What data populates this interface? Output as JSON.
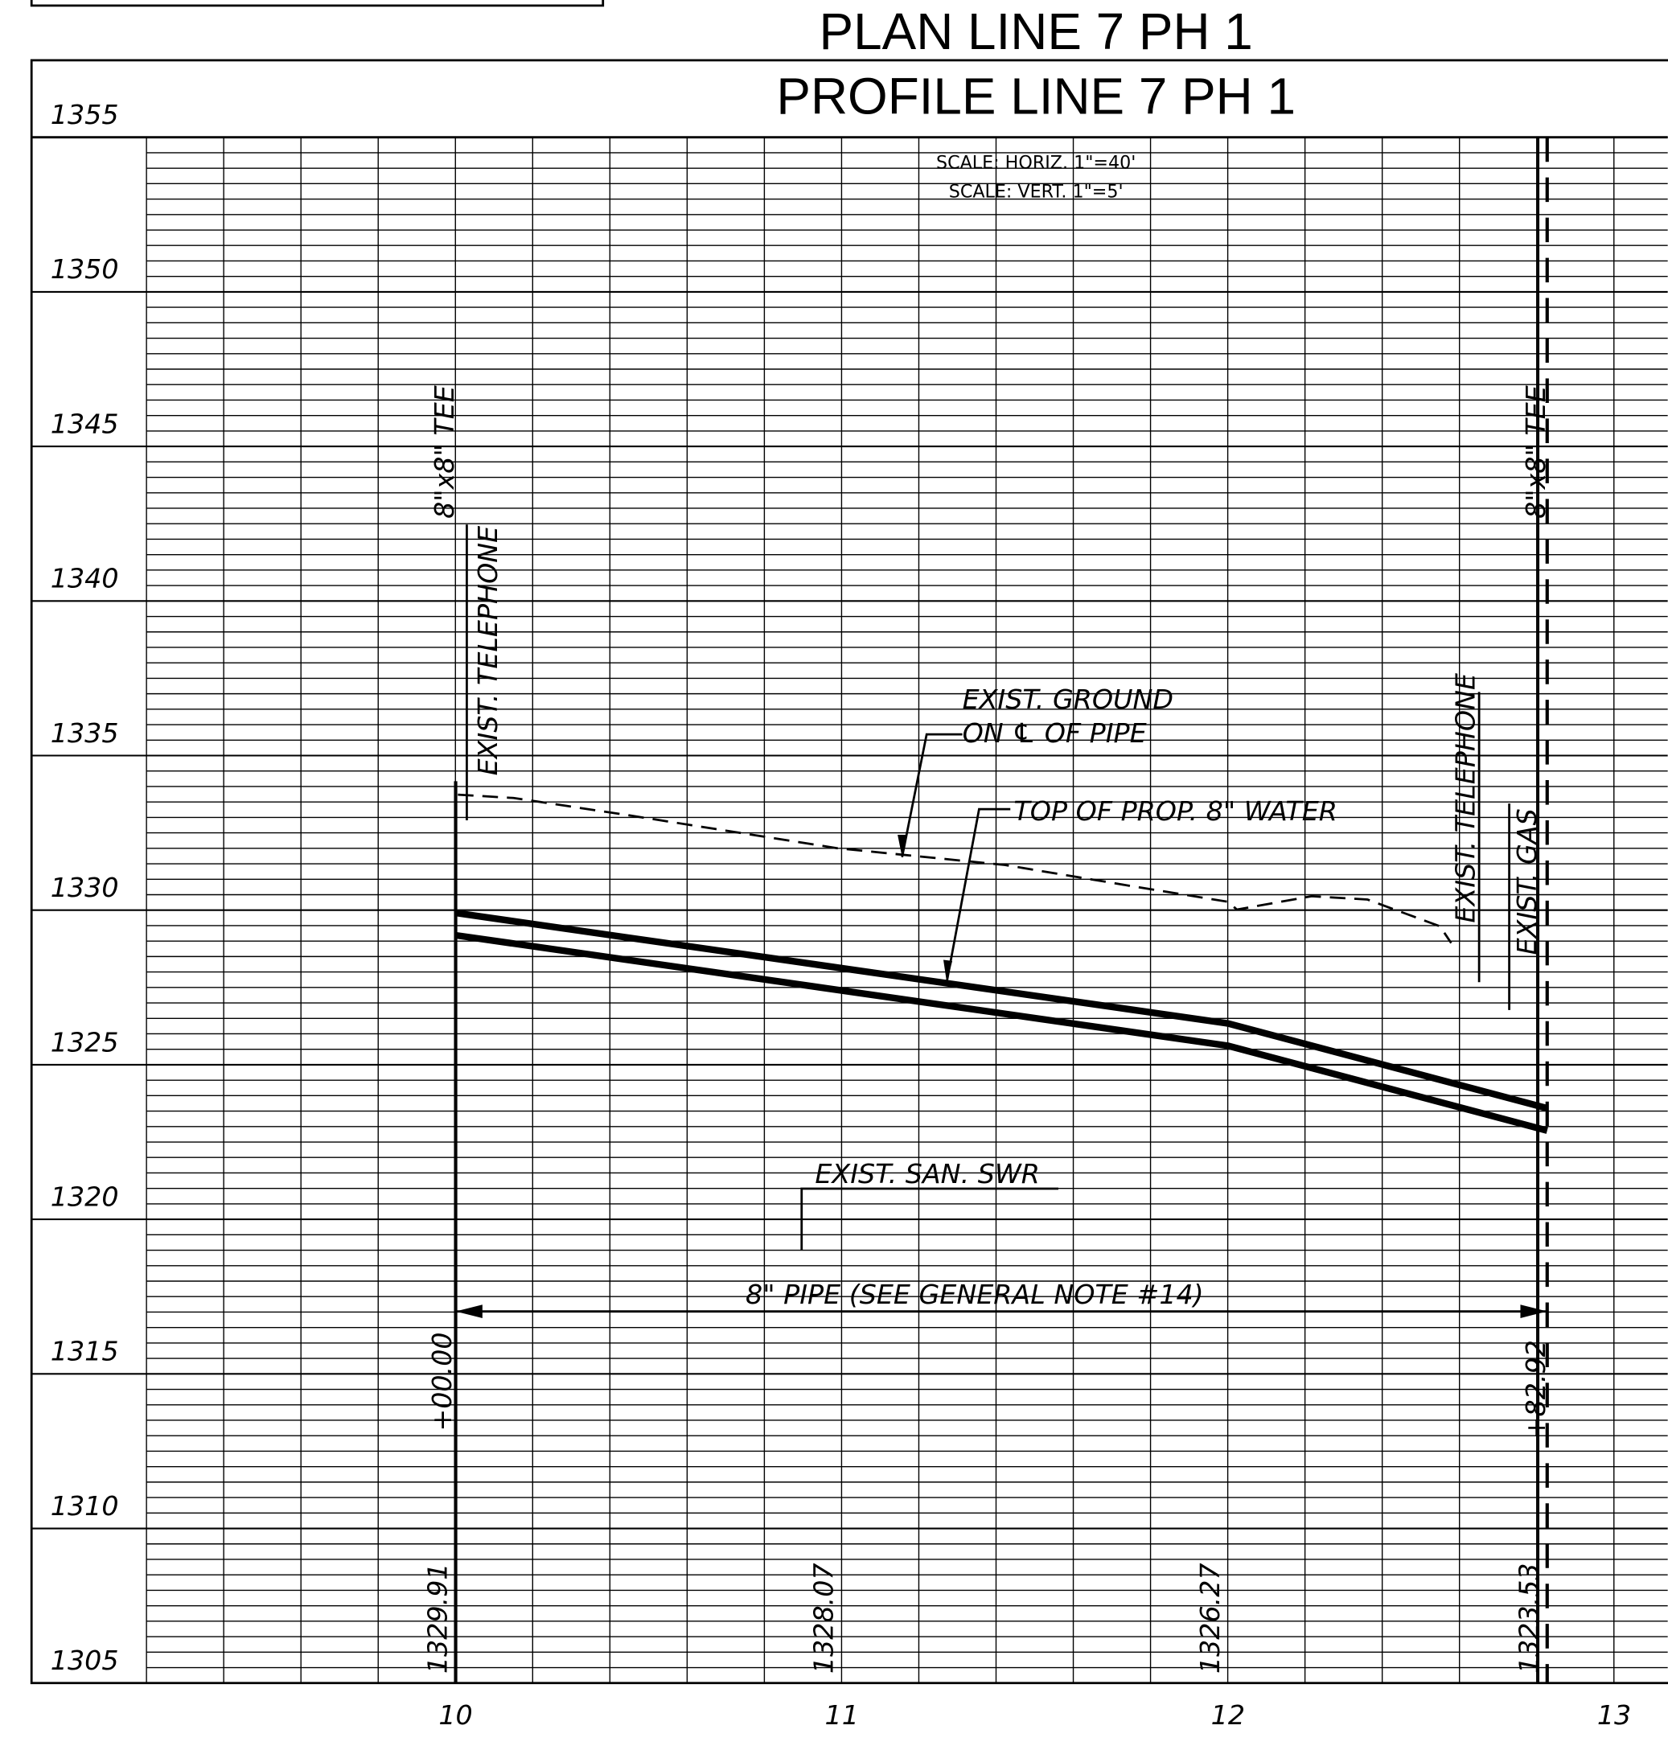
{
  "title": "PLAN LINE 7 PH 1",
  "subtitle": "PROFILE LINE 7 PH 1",
  "scale": [
    "SCALE: HORIZ. 1\"=40'",
    "SCALE: VERT. 1\"=5'"
  ],
  "elevation_labels": [
    1355,
    1350,
    1345,
    1340,
    1335,
    1330,
    1325,
    1320,
    1315,
    1310,
    1305
  ],
  "station_labels": [
    10,
    11,
    12,
    13
  ],
  "bottom_elevations": [
    "1329.91",
    "1328.07",
    "1326.27",
    "1323.53"
  ],
  "station_offsets": [
    "+00.00",
    "+82.92"
  ],
  "callouts": {
    "tee_left": "8\"x8\" TEE",
    "tee_right": "8\"x8\" TEE",
    "telephone_left": "EXIST. TELEPHONE",
    "telephone_right": "EXIST. TELEPHONE",
    "gas": "EXIST. GAS",
    "ground_1": "EXIST. GROUND",
    "ground_2": "ON ℄ OF PIPE",
    "water": "TOP OF PROP. 8\" WATER",
    "sewer": "EXIST. SAN. SWR",
    "pipe": "8\" PIPE (SEE GENERAL NOTE #14)"
  }
}
